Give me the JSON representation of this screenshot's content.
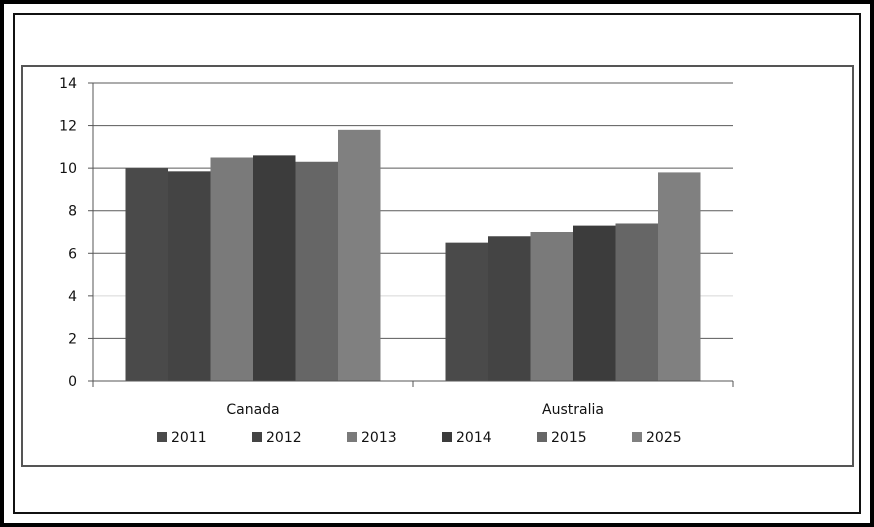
{
  "chart_data": {
    "type": "bar",
    "title": "",
    "xlabel": "",
    "ylabel": "",
    "categories": [
      "Canada",
      "Australia"
    ],
    "ylim": [
      0,
      14
    ],
    "yticks": [
      0,
      2,
      4,
      6,
      8,
      10,
      12,
      14
    ],
    "grid": true,
    "legend_position": "bottom",
    "series": [
      {
        "name": "2011",
        "values": [
          10.0,
          6.5
        ],
        "color": "#4a4a4a"
      },
      {
        "name": "2012",
        "values": [
          9.85,
          6.8
        ],
        "color": "#444444"
      },
      {
        "name": "2013",
        "values": [
          10.5,
          7.0
        ],
        "color": "#7a7a7a"
      },
      {
        "name": "2014",
        "values": [
          10.6,
          7.3
        ],
        "color": "#3c3c3c"
      },
      {
        "name": "2015",
        "values": [
          10.3,
          7.4
        ],
        "color": "#666666"
      },
      {
        "name": "2025",
        "values": [
          11.8,
          9.8
        ],
        "color": "#808080"
      }
    ]
  }
}
